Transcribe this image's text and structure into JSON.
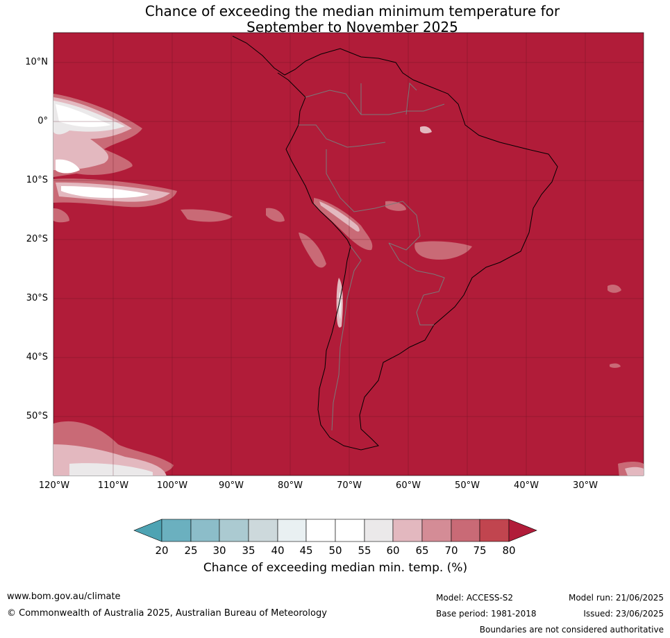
{
  "title_line1": "Chance of exceeding the median minimum temperature for",
  "title_line2": "September to November 2025",
  "map": {
    "background_color": "#b11c39",
    "lat_labels": [
      "10°N",
      "0°",
      "10°S",
      "20°S",
      "30°S",
      "40°S",
      "50°S"
    ],
    "lon_labels": [
      "120°W",
      "110°W",
      "100°W",
      "90°W",
      "80°W",
      "70°W",
      "60°W",
      "50°W",
      "40°W",
      "30°W"
    ]
  },
  "colorbar": {
    "ticks": [
      "20",
      "25",
      "30",
      "35",
      "40",
      "45",
      "50",
      "55",
      "60",
      "65",
      "70",
      "75",
      "80"
    ],
    "colors": [
      "#4ea3b3",
      "#6bb0bf",
      "#8cbdc9",
      "#abcad1",
      "#cdd9dc",
      "#e9f0f2",
      "#ffffff",
      "#ffffff",
      "#ebe9ea",
      "#e3b8bf",
      "#d48c96",
      "#c96a76",
      "#c1454f",
      "#b11c39"
    ],
    "label": "Chance of exceeding median min. temp. (%)"
  },
  "footer": {
    "website": "www.bom.gov.au/climate",
    "copyright": "© Commonwealth of Australia 2025, Australian Bureau of Meteorology",
    "model": "Model: ACCESS-S2",
    "base_period": "Base period: 1981-2018",
    "model_run": "Model run: 21/06/2025",
    "issued": "Issued: 23/06/2025",
    "disclaimer": "Boundaries are not considered authoritative"
  }
}
